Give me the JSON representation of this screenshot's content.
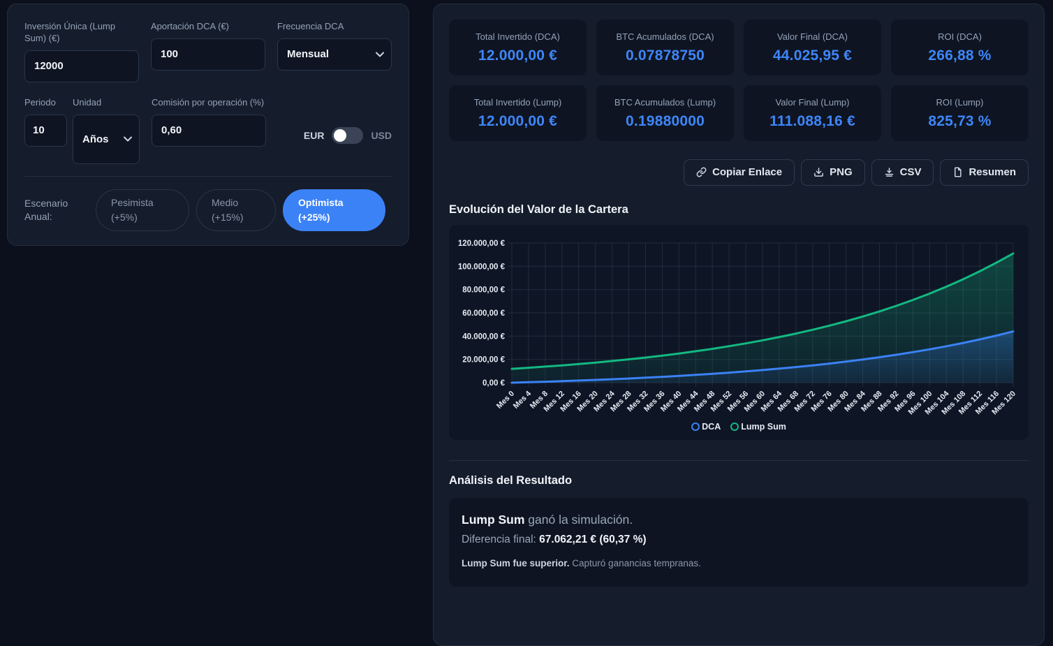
{
  "form": {
    "lump_label": "Inversión Única (Lump Sum) (€)",
    "lump_value": "12000",
    "dca_label": "Aportación DCA (€)",
    "dca_value": "100",
    "freq_label": "Frecuencia DCA",
    "freq_value": "Mensual",
    "period_label": "Periodo",
    "period_value": "10",
    "unit_label": "Unidad",
    "unit_value": "Años",
    "fee_label": "Comisión por operación (%)",
    "fee_value": "0,60",
    "currency": {
      "left": "EUR",
      "right": "USD",
      "selected": "EUR"
    },
    "scenario_label": "Escenario Anual:",
    "scenarios": [
      {
        "label": "Pesimista (+5%)",
        "active": false
      },
      {
        "label": "Medio (+15%)",
        "active": false
      },
      {
        "label": "Optimista (+25%)",
        "active": true
      }
    ]
  },
  "stats": {
    "cards": [
      {
        "label": "Total Invertido (DCA)",
        "value": "12.000,00 €"
      },
      {
        "label": "BTC Acumulados (DCA)",
        "value": "0.07878750"
      },
      {
        "label": "Valor Final (DCA)",
        "value": "44.025,95 €"
      },
      {
        "label": "ROI (DCA)",
        "value": "266,88 %"
      },
      {
        "label": "Total Invertido (Lump)",
        "value": "12.000,00 €"
      },
      {
        "label": "BTC Acumulados (Lump)",
        "value": "0.19880000"
      },
      {
        "label": "Valor Final (Lump)",
        "value": "111.088,16 €"
      },
      {
        "label": "ROI (Lump)",
        "value": "825,73 %"
      }
    ]
  },
  "toolbar": {
    "copy_link": "Copiar Enlace",
    "png": "PNG",
    "csv": "CSV",
    "summary": "Resumen"
  },
  "chart_data": {
    "type": "area",
    "title": "Evolución del Valor de la Cartera",
    "xlabel": "",
    "ylabel": "",
    "grid": true,
    "legend_position": "bottom",
    "x_tick_prefix": "Mes ",
    "x": [
      0,
      4,
      8,
      12,
      16,
      20,
      24,
      28,
      32,
      36,
      40,
      44,
      48,
      52,
      56,
      60,
      64,
      68,
      72,
      76,
      80,
      84,
      88,
      92,
      96,
      100,
      104,
      108,
      112,
      116,
      120
    ],
    "series": [
      {
        "name": "DCA",
        "color": "#3b82f6",
        "values": [
          0,
          409,
          850,
          1324,
          1836,
          2386,
          2979,
          3618,
          4306,
          5048,
          5846,
          6706,
          7634,
          8634,
          9710,
          10865,
          12113,
          13458,
          14906,
          16466,
          18145,
          19958,
          21906,
          24004,
          26271,
          28707,
          31331,
          34162,
          37208,
          40489,
          44026
        ]
      },
      {
        "name": "Lump Sum",
        "color": "#13b981",
        "values": [
          11928,
          12849,
          13841,
          14910,
          16061,
          17302,
          18638,
          20077,
          21628,
          23297,
          25096,
          27034,
          29121,
          31369,
          33792,
          36401,
          39212,
          42240,
          45502,
          49015,
          52800,
          56877,
          61268,
          66000,
          71096,
          76585,
          82500,
          88870,
          95731,
          103125,
          111088
        ]
      }
    ],
    "ylim": [
      0,
      120000
    ],
    "y_ticks": [
      0,
      20000,
      40000,
      60000,
      80000,
      100000,
      120000
    ],
    "y_tick_labels": [
      "0,00 €",
      "20.000,00 €",
      "40.000,00 €",
      "60.000,00 €",
      "80.000,00 €",
      "100.000,00 €",
      "120.000,00 €"
    ]
  },
  "analysis": {
    "heading": "Análisis del Resultado",
    "winner": "Lump Sum",
    "winner_rest": " ganó la simulación.",
    "diff_label": "Diferencia final: ",
    "diff_value": "67.062,21 € (60,37 %)",
    "note_bold": "Lump Sum fue superior.",
    "note_rest": " Capturó ganancias tempranas."
  },
  "colors": {
    "accent": "#3b82f6",
    "dca": "#3b82f6",
    "lump": "#13b981",
    "value_blue": "#3e86f8"
  }
}
